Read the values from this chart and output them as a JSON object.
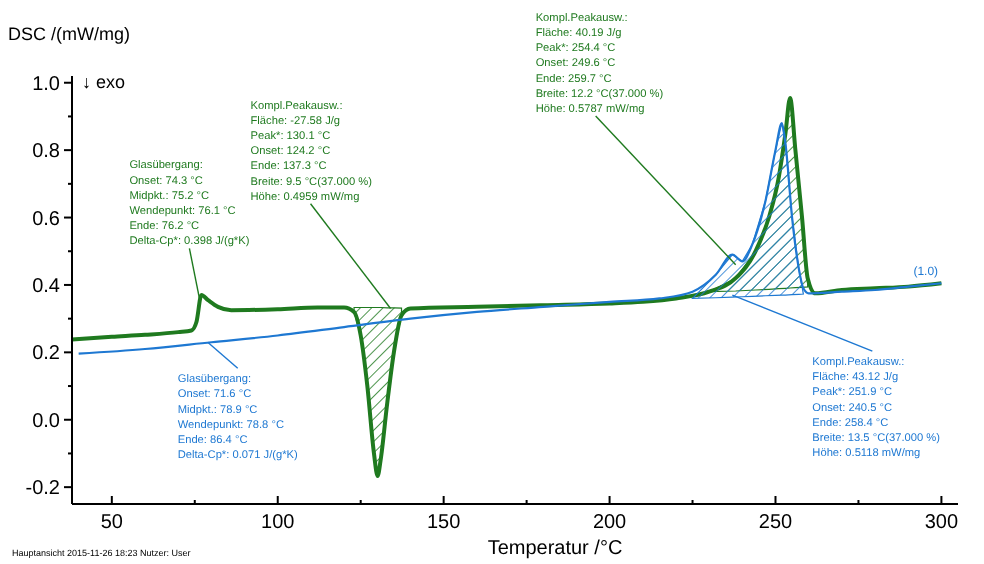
{
  "chart_data": {
    "type": "line",
    "ylabel": "DSC /(mW/mg)",
    "xlabel": "Temperatur /°C",
    "xlim": [
      38,
      305
    ],
    "ylim": [
      -0.25,
      1.02
    ],
    "xticks": [
      50,
      {
        "value": 75,
        "label": null
      },
      100,
      {
        "value": 125,
        "label": null
      },
      150,
      {
        "value": 175,
        "label": null
      },
      200,
      {
        "value": 225,
        "label": null
      },
      250,
      {
        "value": 275,
        "label": null
      },
      300
    ],
    "yticks": [
      {
        "value": -0.2,
        "label": "-0.2"
      },
      {
        "value": -0.1,
        "label": null
      },
      {
        "value": 0,
        "label": "0.0"
      },
      {
        "value": 0.1,
        "label": null
      },
      {
        "value": 0.2,
        "label": "0.2"
      },
      {
        "value": 0.3,
        "label": null
      },
      {
        "value": 0.4,
        "label": "0.4"
      },
      {
        "value": 0.5,
        "label": null
      },
      {
        "value": 0.6,
        "label": "0.6"
      },
      {
        "value": 0.7,
        "label": null
      },
      {
        "value": 0.8,
        "label": "0.8"
      },
      {
        "value": 0.9,
        "label": null
      },
      {
        "value": 1.0,
        "label": "1.0"
      }
    ],
    "series": [
      {
        "color": "#1f7a1f",
        "x": [
          38,
          50,
          60,
          70,
          74,
          75.5,
          77,
          79,
          82,
          86,
          100,
          112,
          120,
          123,
          125,
          127,
          129,
          130.1,
          131,
          133,
          135,
          137.3,
          140,
          160,
          180,
          200,
          210,
          220,
          230,
          238,
          244,
          248,
          251,
          253,
          254.4,
          256,
          258,
          259.7,
          262,
          270,
          280,
          290,
          300
        ],
        "values": [
          0.238,
          0.246,
          0.252,
          0.26,
          0.265,
          0.29,
          0.37,
          0.355,
          0.335,
          0.325,
          0.328,
          0.333,
          0.333,
          0.32,
          0.25,
          0.1,
          -0.1,
          -0.167,
          -0.12,
          0.05,
          0.2,
          0.31,
          0.33,
          0.335,
          0.34,
          0.345,
          0.35,
          0.36,
          0.38,
          0.42,
          0.5,
          0.6,
          0.72,
          0.85,
          0.955,
          0.8,
          0.6,
          0.42,
          0.375,
          0.385,
          0.39,
          0.395,
          0.405
        ],
        "lower": [
          null,
          null,
          null,
          null,
          null,
          null,
          null,
          null,
          null,
          null,
          null,
          null,
          null,
          0.32,
          0.25,
          0.1,
          -0.1,
          -0.167,
          -0.12,
          0.05,
          0.2,
          0.31,
          null,
          null,
          null,
          null,
          null,
          null,
          0.38,
          0.382,
          0.385,
          0.387,
          0.389,
          0.39,
          0.391,
          0.392,
          0.393,
          0.394,
          null,
          null,
          null,
          null,
          null
        ],
        "upper": [
          null,
          null,
          null,
          null,
          null,
          null,
          null,
          null,
          null,
          null,
          null,
          null,
          null,
          0.333,
          0.333,
          0.333,
          0.333,
          0.333,
          0.333,
          0.332,
          0.332,
          0.331,
          null,
          null,
          null,
          null,
          null,
          null,
          0.38,
          0.42,
          0.5,
          0.6,
          0.72,
          0.85,
          0.955,
          0.8,
          0.6,
          0.42,
          null,
          null,
          null,
          null,
          null
        ]
      },
      {
        "color": "#1e78d2",
        "x": [
          40,
          60,
          80,
          100,
          120,
          140,
          160,
          180,
          200,
          215,
          225,
          232,
          237,
          240,
          243,
          247,
          250,
          251.9,
          253,
          255,
          257,
          258.4,
          260,
          270,
          280,
          290,
          300
        ],
        "values": [
          0.196,
          0.21,
          0.23,
          0.25,
          0.275,
          0.3,
          0.32,
          0.335,
          0.35,
          0.36,
          0.38,
          0.43,
          0.49,
          0.47,
          0.52,
          0.65,
          0.8,
          0.88,
          0.82,
          0.6,
          0.45,
          0.39,
          0.375,
          0.38,
          0.385,
          0.395,
          0.405
        ],
        "lower": [
          null,
          null,
          null,
          null,
          null,
          null,
          null,
          null,
          null,
          null,
          0.36,
          0.362,
          0.364,
          0.365,
          0.366,
          0.368,
          0.369,
          0.37,
          0.37,
          0.371,
          0.372,
          0.373,
          null,
          null,
          null,
          null,
          null
        ],
        "upper": [
          null,
          null,
          null,
          null,
          null,
          null,
          null,
          null,
          null,
          null,
          0.36,
          0.43,
          0.49,
          0.47,
          0.52,
          0.65,
          0.8,
          0.88,
          0.82,
          0.6,
          0.45,
          0.373,
          null,
          null,
          null,
          null,
          null
        ]
      }
    ],
    "annotations": [
      "Glasübergang:",
      "Onset: 74.3 °C",
      "Midpkt.: 75.2 °C",
      "Wendepunkt: 76.1 °C",
      "Ende: 76.2 °C",
      {
        "text": "Delta-Cp*: 0.398 J/(g*K)",
        "x": 76.4,
        "y": 0.36
      },
      "Kompl.Peakausw.:",
      "Fläche: -27.58 J/g",
      "Peak*: 130.1 °C",
      "Onset: 124.2 °C",
      "Ende: 137.3 °C",
      "Breite: 9.5 °C(37.000 %)",
      {
        "text": "Höhe: 0.4959 mW/mg",
        "x": 134,
        "y": 0.33
      },
      "Kompl.Peakausw.:",
      "Fläche: 40.19 J/g",
      "Peak*: 254.4 °C",
      "Onset: 249.6 °C",
      "Ende: 259.7 °C",
      "Breite: 12.2 °C(37.000 %)",
      {
        "text": "Höhe: 0.5787 mW/mg",
        "x": 238,
        "y": 0.46
      },
      "Onset: 71.6 °C",
      "Midpkt.: 78.9 °C",
      "Wendepunkt: 78.8 °C",
      "Ende: 86.4 °C",
      "Delta-Cp*: 0.071 J/(g*K)",
      {
        "text": "Glasübergang:",
        "x": 78.9,
        "y": 0.23
      },
      "Fläche: 43.12 J/g",
      "Peak*: 251.9 °C",
      "Onset: 240.5 °C",
      "Ende: 258.4 °C",
      "Breite: 13.5 °C(37.000 %)",
      "Höhe: 0.5118 mW/mg",
      {
        "text": "Kompl.Peakausw.:",
        "x": 237,
        "y": 0.37
      },
      {
        "text": "(1.0)",
        "x": 300,
        "y": 0.405
      },
      "↓ exo",
      "Hauptansicht  2015-11-26 18:23  Nutzer: User"
    ]
  }
}
